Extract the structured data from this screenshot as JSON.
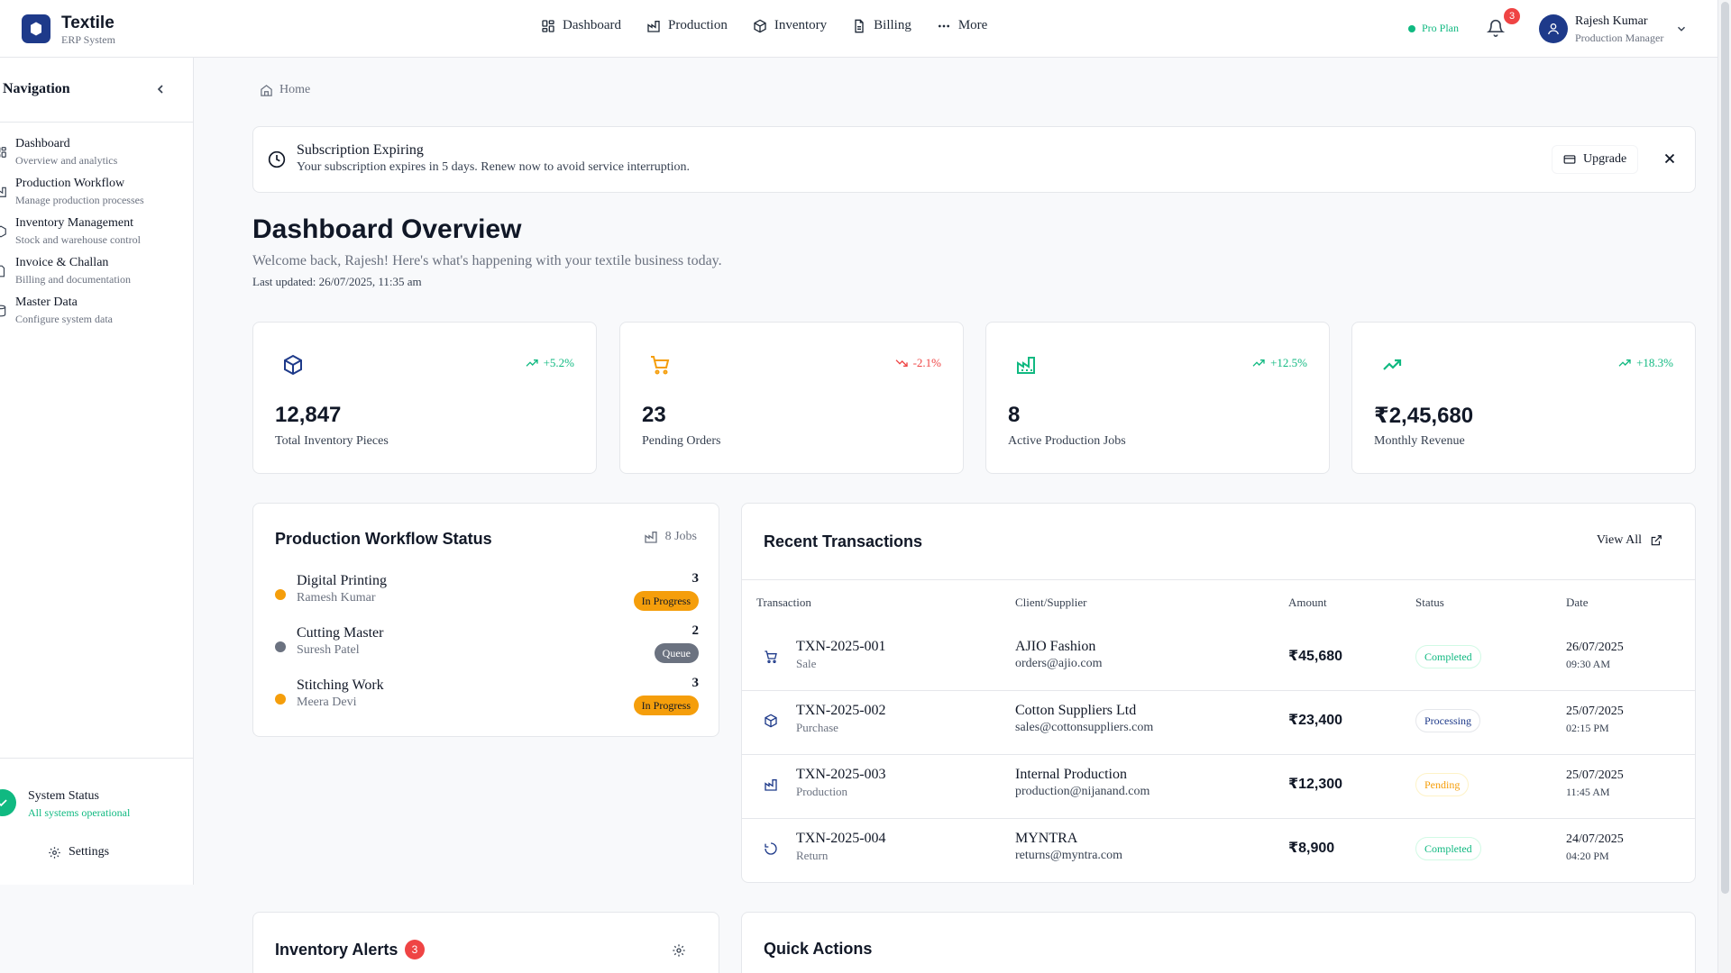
{
  "app": {
    "name": "Textile",
    "subtitle": "ERP System"
  },
  "topnav": [
    {
      "label": "Dashboard",
      "icon": "grid-icon"
    },
    {
      "label": "Production",
      "icon": "factory-icon"
    },
    {
      "label": "Inventory",
      "icon": "box-icon"
    },
    {
      "label": "Billing",
      "icon": "document-icon"
    },
    {
      "label": "More",
      "icon": "dots-icon"
    }
  ],
  "plan": {
    "label": "Pro Plan"
  },
  "notifications": {
    "count": "3"
  },
  "user": {
    "name": "Rajesh Kumar",
    "role": "Production Manager"
  },
  "sidebar": {
    "title": "Navigation",
    "items": [
      {
        "label": "Dashboard",
        "sub": "Overview and analytics"
      },
      {
        "label": "Production Workflow",
        "sub": "Manage production processes"
      },
      {
        "label": "Inventory Management",
        "sub": "Stock and warehouse control"
      },
      {
        "label": "Invoice & Challan",
        "sub": "Billing and documentation"
      },
      {
        "label": "Master Data",
        "sub": "Configure system data"
      }
    ],
    "status_title": "System Status",
    "status_sub": "All systems operational",
    "settings_label": "Settings"
  },
  "breadcrumb": {
    "home": "Home"
  },
  "alert": {
    "title": "Subscription Expiring",
    "message": "Your subscription expires in 5 days. Renew now to avoid service interruption.",
    "upgrade_label": "Upgrade"
  },
  "page": {
    "title": "Dashboard Overview",
    "subtitle": "Welcome back, Rajesh! Here's what's happening with your textile business today.",
    "updated": "Last updated: 26/07/2025, 11:35 am"
  },
  "stats": [
    {
      "value": "12,847",
      "label": "Total Inventory Pieces",
      "trend": "+5.2%",
      "direction": "up",
      "icon": "box-icon",
      "color": "#1e3a8a"
    },
    {
      "value": "23",
      "label": "Pending Orders",
      "trend": "-2.1%",
      "direction": "down",
      "icon": "cart-icon",
      "color": "#f59e0b"
    },
    {
      "value": "8",
      "label": "Active Production Jobs",
      "trend": "+12.5%",
      "direction": "up",
      "icon": "factory-icon",
      "color": "#10b981"
    },
    {
      "value": "₹2,45,680",
      "label": "Monthly Revenue",
      "trend": "+18.3%",
      "direction": "up",
      "icon": "trend-icon",
      "color": "#10b981"
    }
  ],
  "workflow": {
    "title": "Production Workflow Status",
    "jobs": "8 Jobs",
    "items": [
      {
        "name": "Digital Printing",
        "person": "Ramesh Kumar",
        "count": "3",
        "status": "In Progress",
        "dot": "#f59e0b"
      },
      {
        "name": "Cutting Master",
        "person": "Suresh Patel",
        "count": "2",
        "status": "Queue",
        "dot": "#6b7280"
      },
      {
        "name": "Stitching Work",
        "person": "Meera Devi",
        "count": "3",
        "status": "In Progress",
        "dot": "#f59e0b"
      }
    ]
  },
  "transactions": {
    "title": "Recent Transactions",
    "view_all": "View All",
    "headers": [
      "Transaction",
      "Client/Supplier",
      "Amount",
      "Status",
      "Date"
    ],
    "rows": [
      {
        "id": "TXN-2025-001",
        "type": "Sale",
        "icon": "cart-icon",
        "client": "AJIO Fashion",
        "email": "orders@ajio.com",
        "amount": "₹45,680",
        "status": "Completed",
        "date": "26/07/2025",
        "time": "09:30 AM"
      },
      {
        "id": "TXN-2025-002",
        "type": "Purchase",
        "icon": "box-icon",
        "client": "Cotton Suppliers Ltd",
        "email": "sales@cottonsuppliers.com",
        "amount": "₹23,400",
        "status": "Processing",
        "date": "25/07/2025",
        "time": "02:15 PM"
      },
      {
        "id": "TXN-2025-003",
        "type": "Production",
        "icon": "factory-icon",
        "client": "Internal Production",
        "email": "production@nijanand.com",
        "amount": "₹12,300",
        "status": "Pending",
        "date": "25/07/2025",
        "time": "11:45 AM"
      },
      {
        "id": "TXN-2025-004",
        "type": "Return",
        "icon": "return-icon",
        "client": "MYNTRA",
        "email": "returns@myntra.com",
        "amount": "₹8,900",
        "status": "Completed",
        "date": "24/07/2025",
        "time": "04:20 PM"
      }
    ]
  },
  "inventory_alerts": {
    "title": "Inventory Alerts",
    "count": "3"
  },
  "quick_actions": {
    "title": "Quick Actions"
  },
  "colors": {
    "primary": "#1e3a8a",
    "success": "#10b981",
    "warning": "#f59e0b",
    "danger": "#ef4444",
    "neutral": "#6b7280"
  }
}
